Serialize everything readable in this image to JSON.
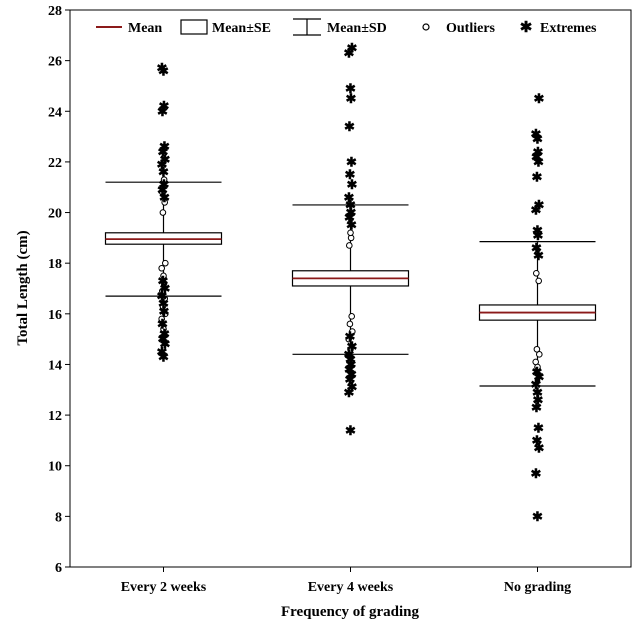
{
  "chart_data": {
    "type": "box",
    "xlabel": "Frequency of grading",
    "ylabel": "Total Length (cm)",
    "ylim": [
      6,
      28
    ],
    "yticks": [
      6,
      8,
      10,
      12,
      14,
      16,
      18,
      20,
      22,
      24,
      26,
      28
    ],
    "grid": false,
    "legend_position": "top",
    "legend": [
      {
        "key": "mean",
        "label": "Mean"
      },
      {
        "key": "se",
        "label": "Mean±SE"
      },
      {
        "key": "sd",
        "label": "Mean±SD"
      },
      {
        "key": "outliers",
        "label": "Outliers"
      },
      {
        "key": "extremes",
        "label": "Extremes"
      }
    ],
    "categories": [
      "Every 2 weeks",
      "Every 4 weeks",
      "No grading"
    ],
    "boxes": [
      {
        "category": "Every 2 weeks",
        "mean": 18.95,
        "se_low": 18.75,
        "se_high": 19.2,
        "sd_low": 16.7,
        "sd_high": 21.2,
        "outliers": [
          15.4,
          15.8,
          16.0,
          16.3,
          16.6,
          16.9,
          17.2,
          17.5,
          17.8,
          18.0,
          20.0,
          20.4,
          20.8,
          21.3
        ],
        "extremes": [
          14.3,
          14.5,
          14.8,
          15.0,
          15.2,
          15.6,
          16.1,
          16.4,
          16.7,
          17.0,
          17.3,
          20.6,
          20.9,
          21.1,
          21.6,
          21.9,
          22.1,
          22.4,
          22.6,
          24.0,
          24.2,
          25.6,
          25.7
        ]
      },
      {
        "category": "Every 4 weeks",
        "mean": 17.4,
        "se_low": 17.1,
        "se_high": 17.7,
        "sd_low": 14.4,
        "sd_high": 20.3,
        "outliers": [
          14.6,
          15.0,
          15.3,
          15.6,
          15.9,
          18.7,
          19.0,
          19.2
        ],
        "extremes": [
          11.4,
          12.9,
          13.1,
          13.4,
          13.6,
          13.8,
          14.0,
          14.2,
          14.4,
          14.7,
          15.1,
          19.5,
          19.8,
          20.0,
          20.3,
          20.6,
          21.1,
          21.5,
          22.0,
          23.4,
          24.5,
          24.9,
          26.3,
          26.5
        ]
      },
      {
        "category": "No grading",
        "mean": 16.05,
        "se_low": 15.75,
        "se_high": 16.35,
        "sd_low": 13.15,
        "sd_high": 18.85,
        "outliers": [
          13.9,
          14.1,
          14.4,
          14.6,
          17.3,
          17.6
        ],
        "extremes": [
          8.0,
          9.7,
          10.7,
          11.0,
          11.5,
          12.3,
          12.6,
          12.9,
          13.2,
          13.5,
          13.7,
          18.3,
          18.6,
          19.1,
          19.3,
          20.1,
          20.3,
          21.4,
          22.0,
          22.2,
          22.4,
          22.9,
          23.1,
          24.5
        ]
      }
    ]
  },
  "colors": {
    "mean": "#8b1a1a",
    "box": "#000000",
    "axis": "#000000"
  }
}
